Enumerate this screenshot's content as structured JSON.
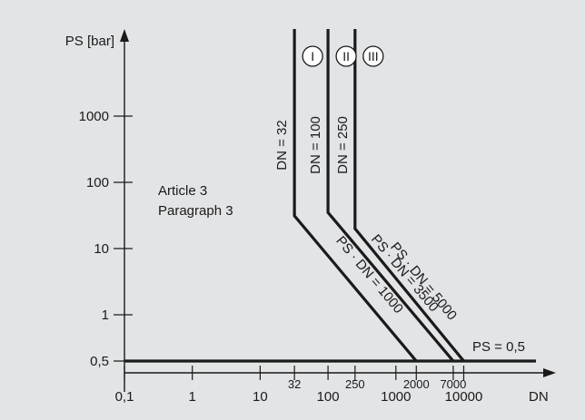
{
  "chart_data": {
    "type": "line",
    "title": "",
    "xlabel": "DN",
    "ylabel": "PS [bar]",
    "x_scale": "log",
    "y_scale": "log",
    "xlim": [
      0.1,
      100000
    ],
    "ylim": [
      0.3,
      10000
    ],
    "grid": false,
    "x_ticks": [
      {
        "value": 0.1,
        "label": "0,1"
      },
      {
        "value": 1,
        "label": "1"
      },
      {
        "value": 10,
        "label": "10"
      },
      {
        "value": 100,
        "label": "100"
      },
      {
        "value": 1000,
        "label": "1000"
      },
      {
        "value": 10000,
        "label": "10000"
      }
    ],
    "x_marks": [
      {
        "value": 32,
        "label": "32"
      },
      {
        "value": 250,
        "label": "250"
      },
      {
        "value": 2000,
        "label": "2000"
      },
      {
        "value": 7000,
        "label": "7000"
      }
    ],
    "y_ticks": [
      {
        "value": 0.5,
        "label": "0,5"
      },
      {
        "value": 1,
        "label": "1"
      },
      {
        "value": 10,
        "label": "10"
      },
      {
        "value": 100,
        "label": "100"
      },
      {
        "value": 1000,
        "label": "1000"
      }
    ],
    "series": [
      {
        "points": [
          [
            32,
            10000
          ],
          [
            32,
            31.25
          ],
          [
            2000,
            0.5
          ]
        ],
        "vertical_label": "DN = 32",
        "diagonal_label": "PS · DN = 1000",
        "category": "I"
      },
      {
        "points": [
          [
            100,
            10000
          ],
          [
            100,
            35
          ],
          [
            7000,
            0.5
          ]
        ],
        "vertical_label": "DN = 100",
        "diagonal_label": "PS · DN = 3500",
        "category": "II"
      },
      {
        "points": [
          [
            250,
            10000
          ],
          [
            250,
            20
          ],
          [
            10000,
            0.5
          ]
        ],
        "vertical_label": "DN = 250",
        "diagonal_label": "PS · DN = 5000",
        "category": "III"
      },
      {
        "points": [
          [
            0.1,
            0.5
          ],
          [
            100000,
            0.5
          ]
        ],
        "label": "PS = 0,5"
      }
    ],
    "annotations": {
      "region_line1": "Article 3",
      "region_line2": "Paragraph 3"
    }
  }
}
